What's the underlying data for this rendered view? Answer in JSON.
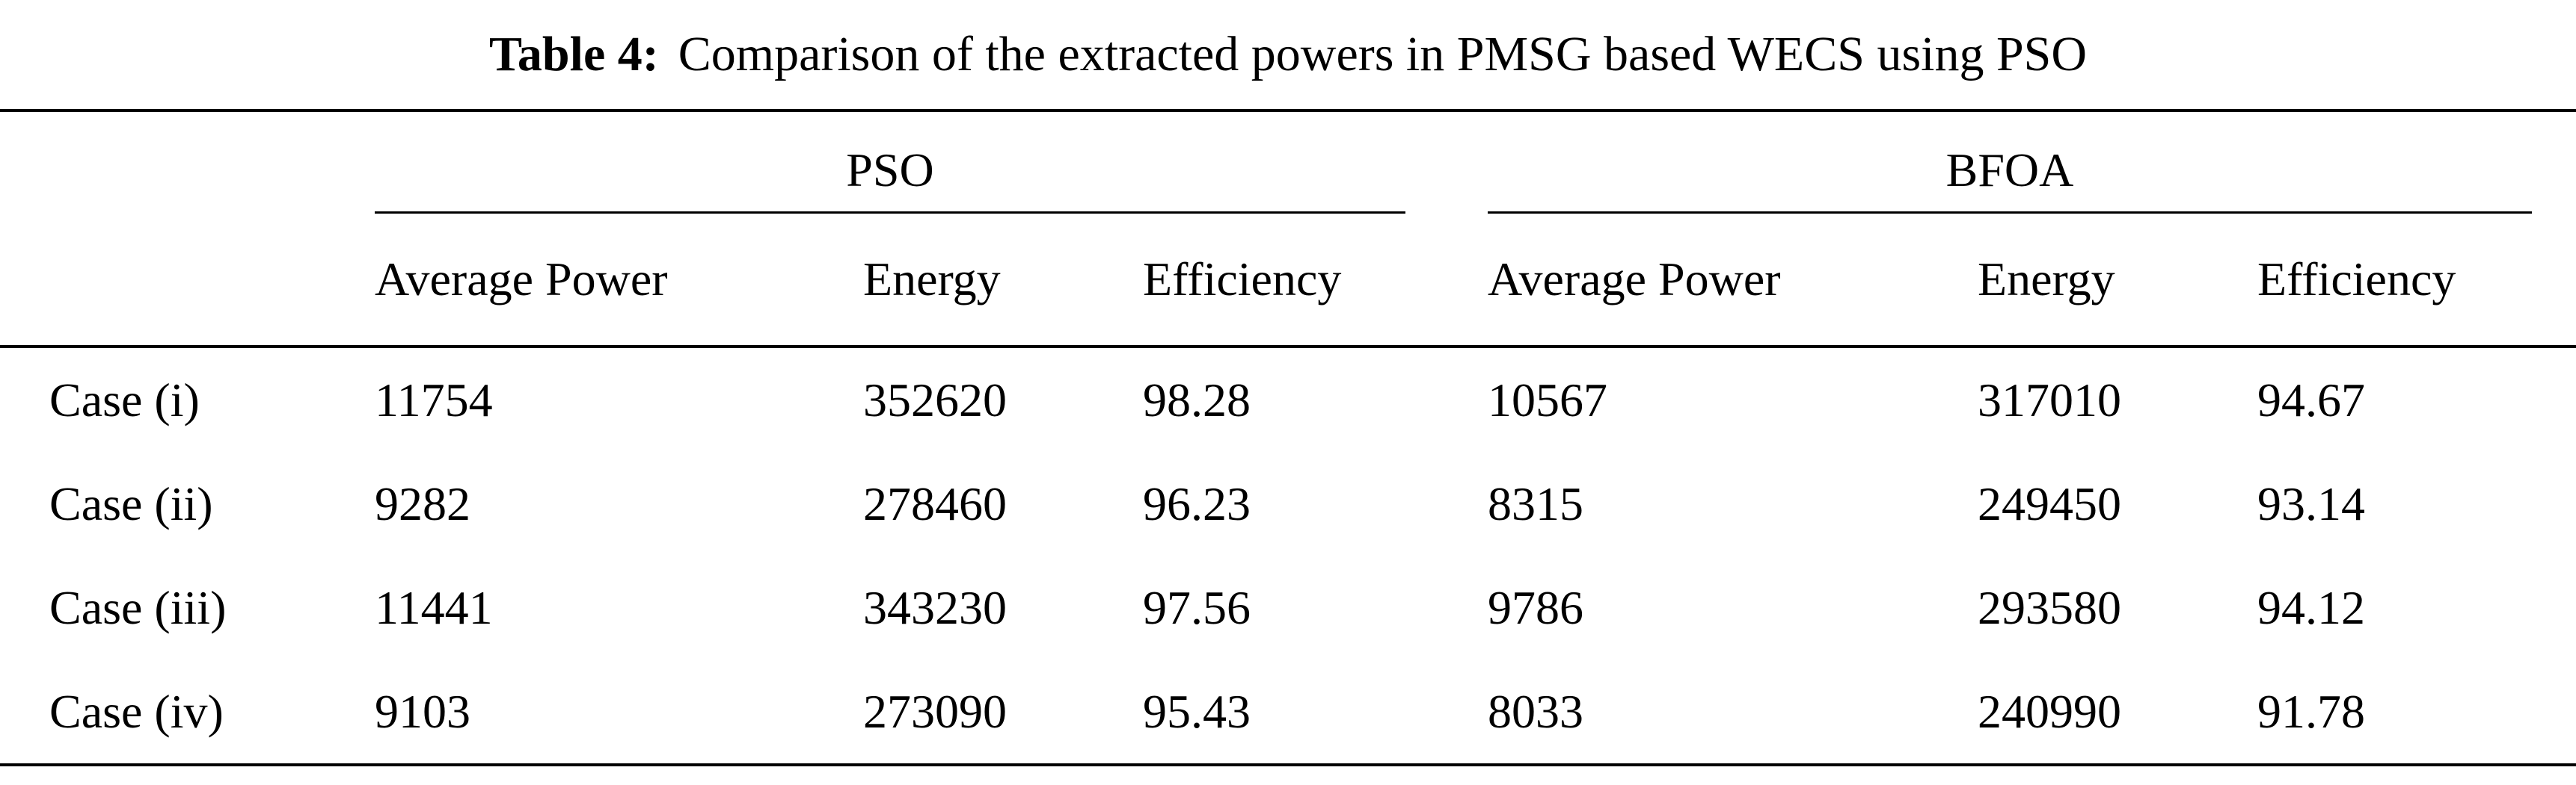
{
  "caption": {
    "label": "Table 4:",
    "text": "Comparison of the extracted powers in PMSG based WECS using PSO"
  },
  "table": {
    "group_headers": [
      "PSO",
      "BFOA"
    ],
    "sub_headers": [
      "Average Power",
      "Energy",
      "Efficiency"
    ],
    "rows": [
      {
        "label": "Case (i)",
        "pso": {
          "average_power": "11754",
          "energy": "352620",
          "efficiency": "98.28"
        },
        "bfoa": {
          "average_power": "10567",
          "energy": "317010",
          "efficiency": "94.67"
        }
      },
      {
        "label": "Case (ii)",
        "pso": {
          "average_power": "9282",
          "energy": "278460",
          "efficiency": "96.23"
        },
        "bfoa": {
          "average_power": "8315",
          "energy": "249450",
          "efficiency": "93.14"
        }
      },
      {
        "label": "Case (iii)",
        "pso": {
          "average_power": "11441",
          "energy": "343230",
          "efficiency": "97.56"
        },
        "bfoa": {
          "average_power": "9786",
          "energy": "293580",
          "efficiency": "94.12"
        }
      },
      {
        "label": "Case (iv)",
        "pso": {
          "average_power": "9103",
          "energy": "273090",
          "efficiency": "95.43"
        },
        "bfoa": {
          "average_power": "8033",
          "energy": "240990",
          "efficiency": "91.78"
        }
      }
    ]
  }
}
